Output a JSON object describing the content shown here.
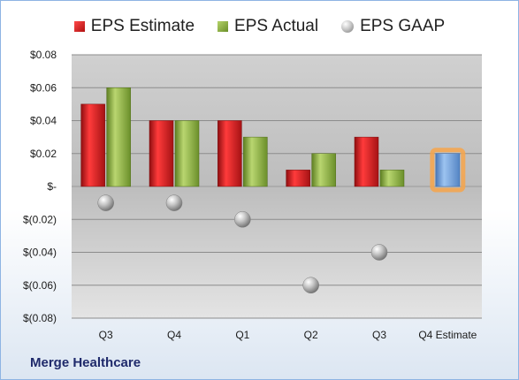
{
  "company": "Merge Healthcare",
  "colors": {
    "estimate": "#c8171c",
    "actual": "#7fa23a",
    "gaap": "#9a9a9a",
    "estimate_highlight": "#6f9fd8",
    "highlight_glow": "#f7a54a"
  },
  "chart_data": {
    "type": "bar",
    "categories": [
      "Q3",
      "Q4",
      "Q1",
      "Q2",
      "Q3",
      "Q4 Estimate"
    ],
    "series": [
      {
        "name": "EPS Estimate",
        "values": [
          0.05,
          0.04,
          0.04,
          0.01,
          0.03,
          null
        ]
      },
      {
        "name": "EPS Actual",
        "values": [
          0.06,
          0.04,
          0.03,
          0.02,
          0.01,
          null
        ]
      },
      {
        "name": "EPS GAAP",
        "values": [
          -0.01,
          -0.01,
          -0.02,
          -0.06,
          -0.04,
          null
        ]
      }
    ],
    "forward_estimate": {
      "category": "Q4 Estimate",
      "value": 0.02
    },
    "ylim": [
      -0.08,
      0.08
    ],
    "yticks": [
      0.08,
      0.06,
      0.04,
      0.02,
      0,
      -0.02,
      -0.04,
      -0.06,
      -0.08
    ],
    "ytick_labels": [
      "$0.08",
      "$0.06",
      "$0.04",
      "$0.02",
      "$-",
      "$(0.02)",
      "$(0.04)",
      "$(0.06)",
      "$(0.08)"
    ],
    "grid": true,
    "legend": {
      "position": "top",
      "entries": [
        "EPS Estimate",
        "EPS Actual",
        "EPS GAAP"
      ]
    }
  }
}
